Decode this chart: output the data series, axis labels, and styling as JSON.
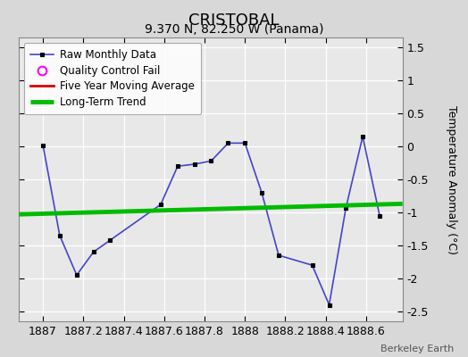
{
  "title": "CRISTOBAL",
  "subtitle": "9.370 N, 82.250 W (Panama)",
  "ylabel": "Temperature Anomaly (°C)",
  "credit": "Berkeley Earth",
  "xlim": [
    1886.88,
    1888.78
  ],
  "ylim": [
    -2.65,
    1.65
  ],
  "xticks": [
    1887,
    1887.2,
    1887.4,
    1887.6,
    1887.8,
    1888,
    1888.2,
    1888.4,
    1888.6
  ],
  "yticks": [
    -2.5,
    -2.0,
    -1.5,
    -1.0,
    -0.5,
    0.0,
    0.5,
    1.0,
    1.5
  ],
  "ytick_labels": [
    "-2.5",
    "-2",
    "-1.5",
    "-1",
    "-0.5",
    "0",
    "0.5",
    "1",
    "1.5"
  ],
  "raw_x": [
    1887.0,
    1887.083,
    1887.167,
    1887.25,
    1887.333,
    1887.583,
    1887.667,
    1887.75,
    1887.833,
    1887.917,
    1888.0,
    1888.083,
    1888.167,
    1888.333,
    1888.417,
    1888.5,
    1888.583,
    1888.667
  ],
  "raw_y": [
    0.02,
    -1.35,
    -1.95,
    -1.6,
    -1.42,
    -0.88,
    -0.3,
    -0.27,
    -0.22,
    0.05,
    0.05,
    -0.7,
    -1.65,
    -1.8,
    -2.4,
    -0.93,
    0.15,
    -1.05
  ],
  "trend_x": [
    1886.88,
    1888.78
  ],
  "trend_y": [
    -1.03,
    -0.87
  ],
  "bg_color": "#d8d8d8",
  "plot_bg_color": "#e8e8e8",
  "raw_line_color": "#4444cc",
  "raw_marker_color": "#000000",
  "trend_color": "#00bb00",
  "mavg_color": "#dd0000",
  "qc_color": "#ff00ff",
  "legend_bg": "#ffffff",
  "title_fontsize": 13,
  "subtitle_fontsize": 10,
  "tick_fontsize": 9,
  "ylabel_fontsize": 9
}
